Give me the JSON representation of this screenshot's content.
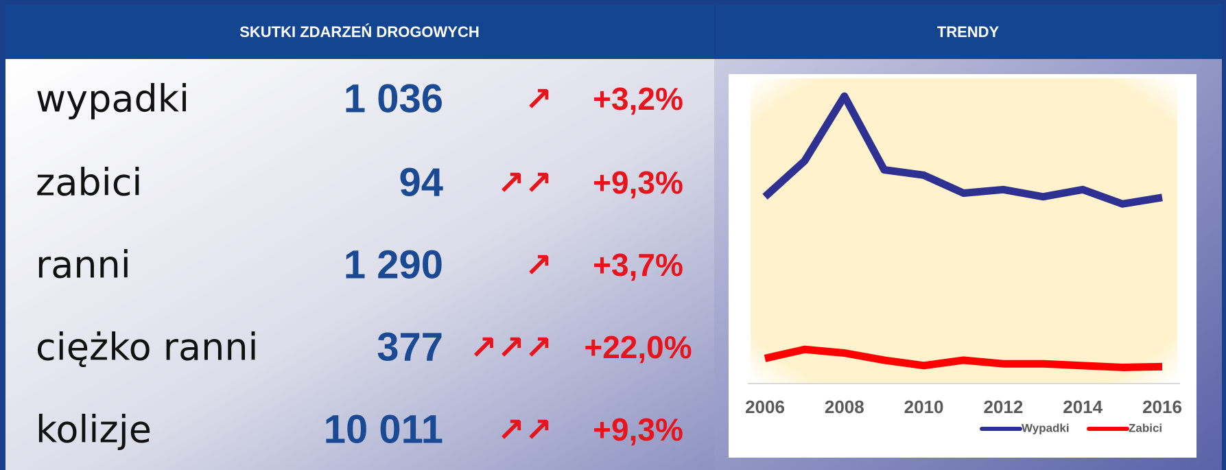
{
  "header": {
    "left_title": "SKUTKI ZDARZEŃ DROGOWYCH",
    "right_title": "TRENDY"
  },
  "table": {
    "rows": [
      {
        "label": "wypadki",
        "value": "1 036",
        "trend": "↗",
        "change": "+3,2%"
      },
      {
        "label": "zabici",
        "value": "94",
        "trend": "↗↗",
        "change": "+9,3%"
      },
      {
        "label": "ranni",
        "value": "1 290",
        "trend": "↗",
        "change": "+3,7%"
      },
      {
        "label": "ciężko ranni",
        "value": "377",
        "trend": "↗↗↗",
        "change": "+22,0%"
      },
      {
        "label": "kolizje",
        "value": "10 011",
        "trend": "↗↗",
        "change": "+9,3%"
      }
    ]
  },
  "chart_data": {
    "type": "line",
    "x": [
      2006,
      2007,
      2008,
      2009,
      2010,
      2011,
      2012,
      2013,
      2014,
      2015,
      2016
    ],
    "xlim": [
      2006,
      2016
    ],
    "xticks": [
      2006,
      2008,
      2010,
      2012,
      2014,
      2016
    ],
    "ylim": [
      0,
      1700
    ],
    "series": [
      {
        "name": "Wypadki",
        "color": "#2e3192",
        "values": [
          1040,
          1240,
          1600,
          1190,
          1160,
          1060,
          1080,
          1040,
          1080,
          1000,
          1036
        ]
      },
      {
        "name": "Zabici",
        "color": "#ff0000",
        "values": [
          140,
          190,
          170,
          130,
          100,
          130,
          110,
          110,
          100,
          90,
          94
        ]
      }
    ],
    "legend": "bottom",
    "grid": false
  }
}
